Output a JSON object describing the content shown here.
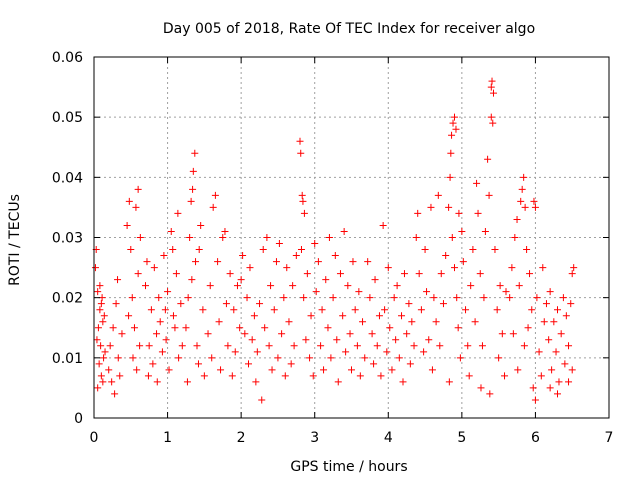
{
  "chart_data": {
    "type": "scatter",
    "title": "Day 005 of 2018, Rate Of TEC Index for receiver algo",
    "xlabel": "GPS time / hours",
    "ylabel": "ROTI / TECUs",
    "xlim": [
      0,
      7
    ],
    "ylim": [
      0,
      0.06
    ],
    "xticks": [
      0,
      1,
      2,
      3,
      4,
      5,
      6,
      7
    ],
    "xtick_labels": [
      "0",
      "1",
      "2",
      "3",
      "4",
      "5",
      "6",
      "7"
    ],
    "yticks": [
      0,
      0.01,
      0.02,
      0.03,
      0.04,
      0.05,
      0.06
    ],
    "ytick_labels": [
      "0",
      "0.01",
      "0.02",
      "0.03",
      "0.04",
      "0.05",
      "0.06"
    ],
    "grid": true,
    "marker": "+",
    "color": "#ff0000",
    "series": [
      {
        "name": "ROTI",
        "points": [
          [
            0.02,
            0.025
          ],
          [
            0.03,
            0.028
          ],
          [
            0.05,
            0.021
          ],
          [
            0.06,
            0.015
          ],
          [
            0.07,
            0.009
          ],
          [
            0.08,
            0.018
          ],
          [
            0.09,
            0.012
          ],
          [
            0.1,
            0.007
          ],
          [
            0.11,
            0.02
          ],
          [
            0.12,
            0.016
          ],
          [
            0.13,
            0.01
          ],
          [
            0.05,
            0.005
          ],
          [
            0.04,
            0.013
          ],
          [
            0.08,
            0.022
          ],
          [
            0.1,
            0.019
          ],
          [
            0.12,
            0.006
          ],
          [
            0.14,
            0.017
          ],
          [
            0.15,
            0.011
          ],
          [
            0.2,
            0.008
          ],
          [
            0.22,
            0.012
          ],
          [
            0.24,
            0.006
          ],
          [
            0.26,
            0.015
          ],
          [
            0.28,
            0.004
          ],
          [
            0.3,
            0.019
          ],
          [
            0.32,
            0.023
          ],
          [
            0.33,
            0.01
          ],
          [
            0.35,
            0.007
          ],
          [
            0.38,
            0.014
          ],
          [
            0.45,
            0.032
          ],
          [
            0.48,
            0.036
          ],
          [
            0.5,
            0.028
          ],
          [
            0.52,
            0.02
          ],
          [
            0.55,
            0.015
          ],
          [
            0.57,
            0.035
          ],
          [
            0.6,
            0.038
          ],
          [
            0.62,
            0.012
          ],
          [
            0.58,
            0.008
          ],
          [
            0.53,
            0.01
          ],
          [
            0.47,
            0.017
          ],
          [
            0.6,
            0.024
          ],
          [
            0.63,
            0.03
          ],
          [
            0.7,
            0.022
          ],
          [
            0.72,
            0.026
          ],
          [
            0.75,
            0.012
          ],
          [
            0.78,
            0.018
          ],
          [
            0.8,
            0.009
          ],
          [
            0.82,
            0.025
          ],
          [
            0.85,
            0.014
          ],
          [
            0.88,
            0.02
          ],
          [
            0.9,
            0.016
          ],
          [
            0.93,
            0.011
          ],
          [
            0.95,
            0.027
          ],
          [
            0.98,
            0.013
          ],
          [
            1.0,
            0.021
          ],
          [
            1.02,
            0.008
          ],
          [
            1.05,
            0.031
          ],
          [
            1.08,
            0.017
          ],
          [
            1.1,
            0.015
          ],
          [
            1.12,
            0.024
          ],
          [
            1.15,
            0.01
          ],
          [
            1.18,
            0.019
          ],
          [
            1.2,
            0.012
          ],
          [
            0.74,
            0.007
          ],
          [
            0.86,
            0.006
          ],
          [
            0.97,
            0.018
          ],
          [
            1.07,
            0.028
          ],
          [
            1.14,
            0.034
          ],
          [
            1.25,
            0.015
          ],
          [
            1.28,
            0.02
          ],
          [
            1.3,
            0.03
          ],
          [
            1.32,
            0.036
          ],
          [
            1.35,
            0.041
          ],
          [
            1.37,
            0.044
          ],
          [
            1.34,
            0.038
          ],
          [
            1.38,
            0.026
          ],
          [
            1.4,
            0.012
          ],
          [
            1.42,
            0.009
          ],
          [
            1.45,
            0.032
          ],
          [
            1.48,
            0.018
          ],
          [
            1.5,
            0.007
          ],
          [
            1.27,
            0.006
          ],
          [
            1.33,
            0.023
          ],
          [
            1.43,
            0.028
          ],
          [
            1.55,
            0.014
          ],
          [
            1.58,
            0.022
          ],
          [
            1.6,
            0.01
          ],
          [
            1.62,
            0.035
          ],
          [
            1.65,
            0.037
          ],
          [
            1.68,
            0.026
          ],
          [
            1.7,
            0.016
          ],
          [
            1.72,
            0.008
          ],
          [
            1.75,
            0.03
          ],
          [
            1.78,
            0.031
          ],
          [
            1.8,
            0.019
          ],
          [
            1.82,
            0.012
          ],
          [
            1.85,
            0.024
          ],
          [
            1.88,
            0.007
          ],
          [
            1.9,
            0.018
          ],
          [
            1.92,
            0.011
          ],
          [
            1.95,
            0.022
          ],
          [
            1.98,
            0.015
          ],
          [
            2.0,
            0.023
          ],
          [
            2.02,
            0.027
          ],
          [
            2.05,
            0.014
          ],
          [
            2.08,
            0.02
          ],
          [
            2.1,
            0.009
          ],
          [
            2.12,
            0.025
          ],
          [
            2.15,
            0.013
          ],
          [
            2.18,
            0.017
          ],
          [
            2.2,
            0.006
          ],
          [
            2.22,
            0.011
          ],
          [
            2.25,
            0.019
          ],
          [
            2.28,
            0.003
          ],
          [
            2.3,
            0.028
          ],
          [
            2.32,
            0.015
          ],
          [
            2.35,
            0.03
          ],
          [
            2.38,
            0.012
          ],
          [
            2.4,
            0.022
          ],
          [
            2.42,
            0.008
          ],
          [
            2.45,
            0.018
          ],
          [
            2.48,
            0.026
          ],
          [
            2.5,
            0.01
          ],
          [
            2.52,
            0.029
          ],
          [
            2.55,
            0.014
          ],
          [
            2.58,
            0.02
          ],
          [
            2.6,
            0.007
          ],
          [
            2.62,
            0.025
          ],
          [
            2.65,
            0.016
          ],
          [
            2.68,
            0.009
          ],
          [
            2.7,
            0.022
          ],
          [
            2.72,
            0.012
          ],
          [
            2.75,
            0.027
          ],
          [
            2.8,
            0.046
          ],
          [
            2.81,
            0.044
          ],
          [
            2.83,
            0.037
          ],
          [
            2.84,
            0.036
          ],
          [
            2.86,
            0.034
          ],
          [
            2.82,
            0.028
          ],
          [
            2.85,
            0.02
          ],
          [
            2.88,
            0.013
          ],
          [
            2.9,
            0.024
          ],
          [
            2.93,
            0.01
          ],
          [
            2.95,
            0.017
          ],
          [
            2.98,
            0.007
          ],
          [
            3.0,
            0.029
          ],
          [
            3.02,
            0.021
          ],
          [
            3.05,
            0.026
          ],
          [
            3.08,
            0.012
          ],
          [
            3.1,
            0.018
          ],
          [
            3.12,
            0.008
          ],
          [
            3.15,
            0.023
          ],
          [
            3.18,
            0.015
          ],
          [
            3.2,
            0.03
          ],
          [
            3.22,
            0.01
          ],
          [
            3.25,
            0.02
          ],
          [
            3.28,
            0.027
          ],
          [
            3.3,
            0.013
          ],
          [
            3.32,
            0.006
          ],
          [
            3.35,
            0.024
          ],
          [
            3.38,
            0.017
          ],
          [
            3.4,
            0.031
          ],
          [
            3.42,
            0.011
          ],
          [
            3.45,
            0.022
          ],
          [
            3.48,
            0.014
          ],
          [
            3.5,
            0.008
          ],
          [
            3.52,
            0.026
          ],
          [
            3.55,
            0.018
          ],
          [
            3.58,
            0.012
          ],
          [
            3.6,
            0.021
          ],
          [
            3.62,
            0.007
          ],
          [
            3.65,
            0.016
          ],
          [
            3.68,
            0.01
          ],
          [
            3.72,
            0.026
          ],
          [
            3.75,
            0.02
          ],
          [
            3.78,
            0.014
          ],
          [
            3.8,
            0.009
          ],
          [
            3.82,
            0.023
          ],
          [
            3.85,
            0.012
          ],
          [
            3.88,
            0.017
          ],
          [
            3.9,
            0.007
          ],
          [
            3.93,
            0.032
          ],
          [
            3.95,
            0.018
          ],
          [
            3.98,
            0.011
          ],
          [
            4.0,
            0.025
          ],
          [
            4.02,
            0.015
          ],
          [
            4.05,
            0.008
          ],
          [
            4.08,
            0.02
          ],
          [
            4.1,
            0.013
          ],
          [
            4.12,
            0.022
          ],
          [
            4.15,
            0.01
          ],
          [
            4.18,
            0.017
          ],
          [
            4.2,
            0.006
          ],
          [
            4.22,
            0.024
          ],
          [
            4.25,
            0.014
          ],
          [
            4.28,
            0.019
          ],
          [
            4.3,
            0.009
          ],
          [
            4.32,
            0.016
          ],
          [
            4.35,
            0.012
          ],
          [
            4.38,
            0.03
          ],
          [
            4.4,
            0.034
          ],
          [
            4.42,
            0.024
          ],
          [
            4.45,
            0.018
          ],
          [
            4.48,
            0.011
          ],
          [
            4.5,
            0.028
          ],
          [
            4.52,
            0.021
          ],
          [
            4.55,
            0.013
          ],
          [
            4.58,
            0.035
          ],
          [
            4.6,
            0.008
          ],
          [
            4.62,
            0.02
          ],
          [
            4.65,
            0.016
          ],
          [
            4.68,
            0.037
          ],
          [
            4.7,
            0.012
          ],
          [
            4.72,
            0.024
          ],
          [
            4.75,
            0.019
          ],
          [
            4.78,
            0.027
          ],
          [
            4.82,
            0.035
          ],
          [
            4.84,
            0.04
          ],
          [
            4.85,
            0.044
          ],
          [
            4.86,
            0.047
          ],
          [
            4.88,
            0.049
          ],
          [
            4.9,
            0.05
          ],
          [
            4.92,
            0.048
          ],
          [
            4.87,
            0.03
          ],
          [
            4.9,
            0.025
          ],
          [
            4.93,
            0.02
          ],
          [
            4.95,
            0.015
          ],
          [
            4.98,
            0.01
          ],
          [
            5.0,
            0.031
          ],
          [
            5.02,
            0.026
          ],
          [
            5.05,
            0.018
          ],
          [
            5.08,
            0.012
          ],
          [
            5.1,
            0.007
          ],
          [
            4.83,
            0.006
          ],
          [
            4.96,
            0.034
          ],
          [
            5.12,
            0.022
          ],
          [
            5.15,
            0.028
          ],
          [
            5.18,
            0.016
          ],
          [
            5.2,
            0.039
          ],
          [
            5.22,
            0.034
          ],
          [
            5.25,
            0.024
          ],
          [
            5.28,
            0.012
          ],
          [
            5.3,
            0.02
          ],
          [
            5.32,
            0.031
          ],
          [
            5.35,
            0.043
          ],
          [
            5.37,
            0.037
          ],
          [
            5.4,
            0.05
          ],
          [
            5.42,
            0.049
          ],
          [
            5.4,
            0.055
          ],
          [
            5.41,
            0.056
          ],
          [
            5.43,
            0.054
          ],
          [
            5.45,
            0.028
          ],
          [
            5.48,
            0.018
          ],
          [
            5.5,
            0.01
          ],
          [
            5.52,
            0.022
          ],
          [
            5.55,
            0.014
          ],
          [
            5.58,
            0.007
          ],
          [
            5.6,
            0.021
          ],
          [
            5.38,
            0.004
          ],
          [
            5.26,
            0.005
          ],
          [
            5.65,
            0.02
          ],
          [
            5.68,
            0.025
          ],
          [
            5.7,
            0.014
          ],
          [
            5.72,
            0.03
          ],
          [
            5.75,
            0.033
          ],
          [
            5.78,
            0.022
          ],
          [
            5.8,
            0.036
          ],
          [
            5.82,
            0.038
          ],
          [
            5.84,
            0.04
          ],
          [
            5.86,
            0.035
          ],
          [
            5.88,
            0.028
          ],
          [
            5.9,
            0.015
          ],
          [
            5.92,
            0.024
          ],
          [
            5.95,
            0.018
          ],
          [
            5.98,
            0.036
          ],
          [
            6.0,
            0.035
          ],
          [
            6.02,
            0.02
          ],
          [
            6.05,
            0.011
          ],
          [
            6.08,
            0.007
          ],
          [
            6.1,
            0.025
          ],
          [
            6.12,
            0.016
          ],
          [
            6.0,
            0.003
          ],
          [
            5.97,
            0.005
          ],
          [
            5.76,
            0.008
          ],
          [
            5.85,
            0.012
          ],
          [
            6.15,
            0.019
          ],
          [
            6.18,
            0.013
          ],
          [
            6.2,
            0.021
          ],
          [
            6.22,
            0.008
          ],
          [
            6.25,
            0.016
          ],
          [
            6.28,
            0.011
          ],
          [
            6.3,
            0.018
          ],
          [
            6.32,
            0.006
          ],
          [
            6.35,
            0.014
          ],
          [
            6.38,
            0.02
          ],
          [
            6.4,
            0.009
          ],
          [
            6.42,
            0.017
          ],
          [
            6.45,
            0.012
          ],
          [
            6.48,
            0.019
          ],
          [
            6.5,
            0.024
          ],
          [
            6.52,
            0.025
          ],
          [
            6.5,
            0.008
          ],
          [
            6.45,
            0.006
          ],
          [
            6.3,
            0.004
          ],
          [
            6.2,
            0.005
          ]
        ]
      }
    ]
  }
}
